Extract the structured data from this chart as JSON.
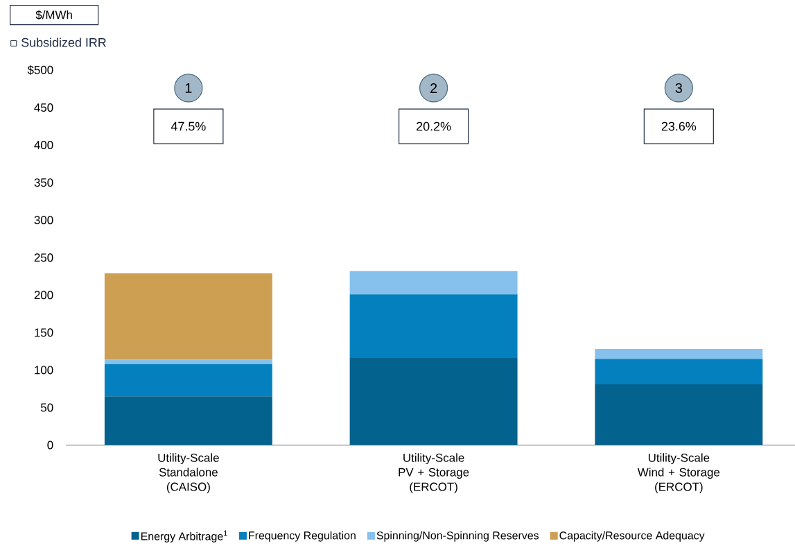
{
  "chart_data": {
    "type": "bar",
    "stacked": true,
    "ylabel": "$/MWh",
    "categories": [
      "Utility-Scale Standalone (CAISO)",
      "Utility-Scale PV + Storage (ERCOT)",
      "Utility-Scale Wind + Storage (ERCOT)"
    ],
    "series": [
      {
        "name": "Energy Arbitrage$^{1}$",
        "color": "#04628e",
        "values": [
          65,
          116,
          81
        ]
      },
      {
        "name": "Frequency Regulation",
        "color": "#0580be",
        "values": [
          43,
          85,
          34
        ]
      },
      {
        "name": "Spinning/Non-Spinning Reserves",
        "color": "#85c1ec",
        "values": [
          6,
          31,
          13
        ]
      },
      {
        "name": "Capacity/Resource Adequacy",
        "color": "#cd9f52",
        "values": [
          115,
          0,
          0
        ]
      }
    ],
    "ylim": [
      0,
      500
    ],
    "yticks": [
      0,
      50,
      100,
      150,
      200,
      250,
      300,
      350,
      400,
      450,
      {
        "value": 500,
        "label": "$500"
      }
    ],
    "annotations": [
      "Subsidized IRR",
      "1",
      "47.5%",
      "2",
      "20.2%",
      "3",
      "23.6%"
    ],
    "legend": "bottom",
    "grid": false
  }
}
